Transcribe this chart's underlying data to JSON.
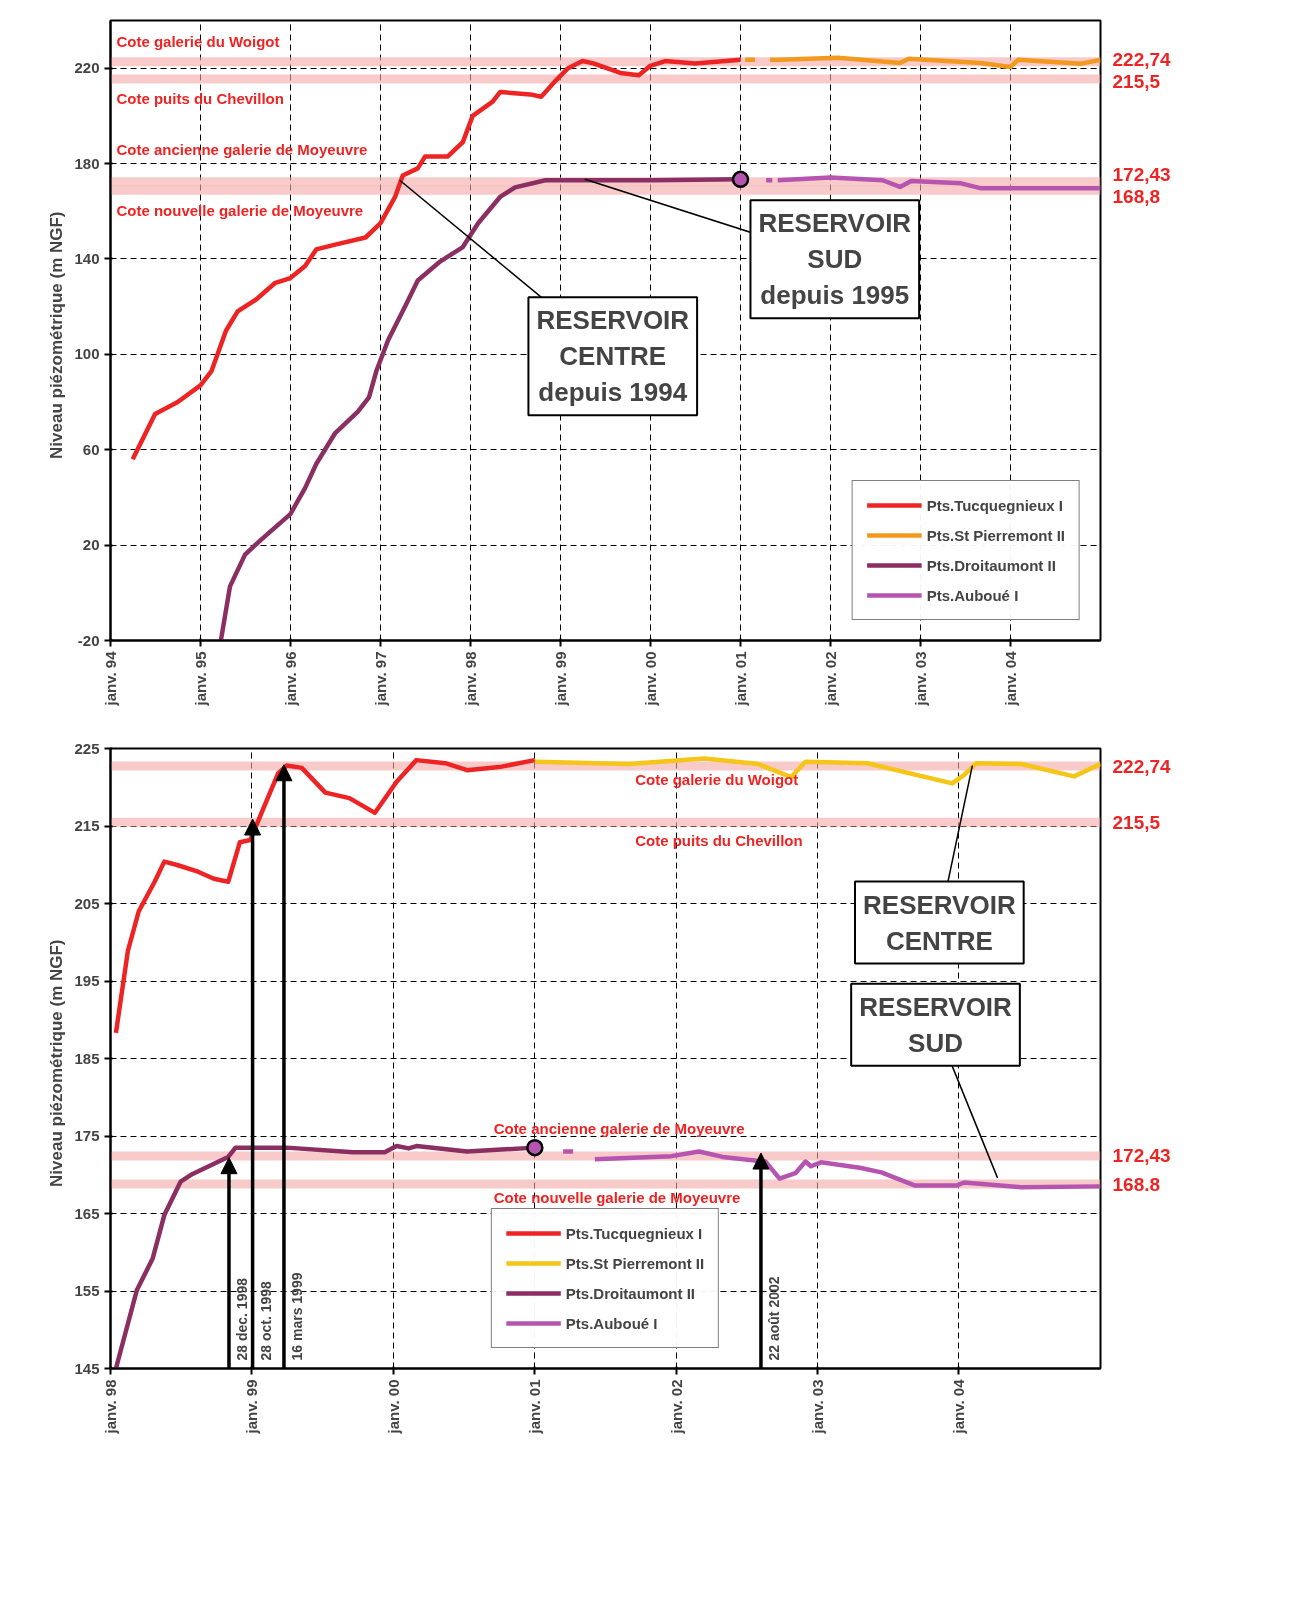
{
  "chart_data": [
    {
      "type": "line",
      "ylabel": "Niveau piézométrique   (m NGF)",
      "xlim": [
        "1994-01-01",
        "2005-01-01"
      ],
      "xticks": [
        {
          "value": "1994-01-01",
          "label": "janv. 94"
        },
        {
          "value": "1995-01-01",
          "label": "janv. 95"
        },
        {
          "value": "1996-01-01",
          "label": "janv. 96"
        },
        {
          "value": "1997-01-01",
          "label": "janv. 97"
        },
        {
          "value": "1998-01-01",
          "label": "janv. 98"
        },
        {
          "value": "1999-01-01",
          "label": "janv. 99"
        },
        {
          "value": "2000-01-01",
          "label": "janv. 00"
        },
        {
          "value": "2001-01-01",
          "label": "janv. 01"
        },
        {
          "value": "2002-01-01",
          "label": "janv. 02"
        },
        {
          "value": "2003-01-01",
          "label": "janv. 03"
        },
        {
          "value": "2004-01-01",
          "label": "janv. 04"
        }
      ],
      "ylim": [
        -20,
        240
      ],
      "yticks": [
        -20,
        20,
        60,
        100,
        140,
        180,
        220
      ],
      "grid": true,
      "legend": "bottom right",
      "series": [
        {
          "name": "Pts.Tucquegnieux I",
          "color": "#ee2424",
          "x": [
            "1994-04-01",
            "1994-07-01",
            "1994-10-01",
            "1995-01-01",
            "1995-02-15",
            "1995-04-15",
            "1995-06-01",
            "1995-08-15",
            "1995-11-01",
            "1996-01-01",
            "1996-03-01",
            "1996-04-15",
            "1996-07-01",
            "1996-11-01",
            "1997-01-01",
            "1997-03-01",
            "1997-04-01",
            "1997-06-01",
            "1997-07-01",
            "1997-10-01",
            "1997-12-01",
            "1998-01-10",
            "1998-04-01",
            "1998-05-01",
            "1998-09-01",
            "1998-10-15",
            "1998-12-15",
            "1999-02-01",
            "1999-04-01",
            "1999-05-15",
            "1999-09-01",
            "1999-11-15",
            "2000-01-01",
            "2000-03-01",
            "2000-07-01",
            "2001-01-01"
          ],
          "values": [
            56,
            75,
            80,
            87,
            93,
            110,
            118,
            123,
            130,
            132,
            137,
            144,
            146,
            149,
            155,
            166,
            175,
            178,
            183,
            183,
            189,
            200,
            206,
            210,
            209,
            208,
            215,
            220,
            223,
            222,
            218,
            217,
            221,
            223,
            222,
            223.5
          ]
        },
        {
          "name": "Pts.St Pierremont II",
          "color": "#f39a1e",
          "x": [
            "2001-01-20",
            "2001-03-01",
            "2001-03-20",
            "2001-05-01",
            "2001-06-10",
            "2002-02-01",
            "2002-10-10",
            "2002-11-15",
            "2003-09-01",
            "2004-01-01",
            "2004-02-01",
            "2004-10-15",
            "2005-01-01"
          ],
          "values": [
            223.5,
            223.5,
            null,
            223.5,
            223.5,
            224.4,
            222.2,
            224,
            222.2,
            220.5,
            223.5,
            221.9,
            223.5
          ]
        },
        {
          "name": "Pts.Droitaumont II",
          "color": "#8b2e62",
          "x": [
            "1995-03-25",
            "1995-05-01",
            "1995-07-01",
            "1995-09-01",
            "1996-01-01",
            "1996-03-01",
            "1996-04-15",
            "1996-07-01",
            "1996-10-01",
            "1996-11-15",
            "1996-12-15",
            "1997-02-01",
            "1997-04-15",
            "1997-06-01",
            "1997-09-01",
            "1997-12-01",
            "1998-02-01",
            "1998-05-01",
            "1998-07-01",
            "1998-11-01",
            "2000-01-01",
            "2001-01-01"
          ],
          "values": [
            -20,
            2.7,
            16,
            22,
            33,
            44,
            54,
            67,
            76,
            82,
            93,
            106,
            121,
            131,
            139,
            145,
            155,
            166,
            170,
            173,
            173,
            173.4
          ]
        },
        {
          "name": "Pts.Auboué I",
          "color": "#b655b0",
          "x": [
            "2001-04-15",
            "2001-05-10",
            "2001-05-20",
            "2001-06-01",
            "2002-01-01",
            "2002-08-01",
            "2002-10-10",
            "2002-11-25",
            "2003-06-15",
            "2003-09-01",
            "2004-02-01",
            "2005-01-01"
          ],
          "values": [
            173,
            173,
            null,
            173,
            174.2,
            173,
            170.2,
            172.7,
            171.7,
            169.7,
            169.7,
            169.7
          ]
        },
        {
          "type": "scatter",
          "marker": "circle",
          "color": "#b655b0",
          "x": [
            "2001-01-01"
          ],
          "values": [
            173.4
          ]
        }
      ],
      "ref_lines": [
        {
          "axis": "y",
          "value": 222.74,
          "label": "222,74",
          "color": "#f4a6a6"
        },
        {
          "axis": "y",
          "value": 215.5,
          "label": "215,5",
          "color": "#f4a6a6"
        },
        {
          "axis": "y",
          "value": 172.43,
          "label": "172,43",
          "color": "#f4a6a6"
        },
        {
          "axis": "y",
          "value": 168.8,
          "label": "168,8",
          "color": "#f4a6a6"
        }
      ],
      "annotations": [
        "Cote galerie du Woigot",
        "Cote puits du Chevillon",
        "Cote ancienne galerie de Moyeuvre",
        "Cote nouvelle galerie de Moyeuvre",
        {
          "text": "RESERVOIR\nCENTRE\ndepuis 1994",
          "x": "1997-03-20",
          "y": 173
        },
        {
          "text": "RESERVOIR\nSUD\ndepuis 1995",
          "x": "1999-04-10",
          "y": 173.4
        }
      ]
    },
    {
      "type": "line",
      "ylabel": "Niveau piézométrique   (m NGF)",
      "xlim": [
        "1998-01-01",
        "2005-01-01"
      ],
      "xticks": [
        {
          "value": "1998-01-01",
          "label": "janv. 98"
        },
        {
          "value": "1999-01-01",
          "label": "janv. 99"
        },
        {
          "value": "2000-01-01",
          "label": "janv. 00"
        },
        {
          "value": "2001-01-01",
          "label": "janv. 01"
        },
        {
          "value": "2002-01-01",
          "label": "janv. 02"
        },
        {
          "value": "2003-01-01",
          "label": "janv. 03"
        },
        {
          "value": "2004-01-01",
          "label": "janv. 04"
        }
      ],
      "ylim": [
        145,
        225
      ],
      "yticks": [
        145,
        155,
        165,
        175,
        185,
        195,
        205,
        215,
        225
      ],
      "grid": true,
      "legend": "bottom",
      "series": [
        {
          "name": "Pts.Tucquegnieux I",
          "color": "#ee2424",
          "x": [
            "1998-01-15",
            "1998-02-15",
            "1998-03-15",
            "1998-04-25",
            "1998-05-20",
            "1998-06-20",
            "1998-08-15",
            "1998-09-25",
            "1998-11-01",
            "1998-12-01",
            "1998-12-28",
            "1999-02-01",
            "1999-03-10",
            "1999-04-01",
            "1999-05-10",
            "1999-07-10",
            "1999-09-10",
            "1999-11-15",
            "2000-01-10",
            "2000-03-01",
            "2000-05-15",
            "2000-07-10",
            "2000-10-01",
            "2001-01-01"
          ],
          "values": [
            188.3,
            198.9,
            204,
            207.8,
            210.4,
            210,
            209.1,
            208.2,
            207.8,
            212.9,
            213.2,
            217.4,
            221.8,
            222.8,
            222.5,
            219.3,
            218.6,
            216.7,
            220.7,
            223.5,
            223.1,
            222.2,
            222.6,
            223.5
          ]
        },
        {
          "name": "Pts.St Pierremont II",
          "color": "#f5c518",
          "x": [
            "2001-01-01",
            "2001-09-01",
            "2002-03-15",
            "2002-08-01",
            "2002-10-25",
            "2002-12-01",
            "2003-05-10",
            "2003-12-15",
            "2004-01-15",
            "2004-02-15",
            "2004-06-10",
            "2004-10-25",
            "2005-01-01"
          ],
          "values": [
            223.3,
            223.0,
            223.7,
            223.0,
            221.3,
            223.3,
            223.1,
            220.5,
            221.6,
            223.1,
            223.0,
            221.4,
            223.0
          ]
        },
        {
          "name": "Pts.Droitaumont II",
          "color": "#8b2e62",
          "x": [
            "1998-01-15",
            "1998-03-10",
            "1998-04-20",
            "1998-05-20",
            "1998-07-01",
            "1998-08-01",
            "1998-11-01",
            "1998-11-20",
            "1999-04-01",
            "1999-09-20",
            "1999-12-10",
            "2000-01-10",
            "2000-02-10",
            "2000-03-01",
            "2000-07-10",
            "2001-01-01"
          ],
          "values": [
            145,
            155.1,
            159.2,
            164.8,
            169.1,
            170.1,
            172.3,
            173.5,
            173.5,
            172.9,
            172.9,
            173.7,
            173.4,
            173.7,
            173.0,
            173.5
          ]
        },
        {
          "name": "Pts.Auboué I",
          "color": "#b655b0",
          "x": [
            "2001-03-15",
            "2001-04-10",
            "2001-05-01",
            "2001-06-05",
            "2001-12-20",
            "2002-03-01",
            "2002-05-01",
            "2002-08-20",
            "2002-09-25",
            "2002-11-05",
            "2002-12-01",
            "2002-12-15",
            "2003-01-10",
            "2003-04-20",
            "2003-06-15",
            "2003-09-10",
            "2003-12-25",
            "2004-01-15",
            "2004-06-10",
            "2005-01-01"
          ],
          "values": [
            173,
            173,
            null,
            172.0,
            172.4,
            173.0,
            172.3,
            171.7,
            169.5,
            170.2,
            171.7,
            171.1,
            171.6,
            170.9,
            170.3,
            168.6,
            168.6,
            169.0,
            168.4,
            168.5
          ]
        },
        {
          "type": "scatter",
          "marker": "circle",
          "color": "#b655b0",
          "x": [
            "2001-01-01"
          ],
          "values": [
            173.5
          ]
        }
      ],
      "ref_lines": [
        {
          "axis": "y",
          "value": 222.74,
          "label": "222,74",
          "color": "#f4a6a6"
        },
        {
          "axis": "y",
          "value": 215.5,
          "label": "215,5",
          "color": "#f4a6a6"
        },
        {
          "axis": "y",
          "value": 172.43,
          "label": "172,43",
          "color": "#f4a6a6"
        },
        {
          "axis": "y",
          "value": 168.8,
          "label": "168.8",
          "color": "#f4a6a6"
        }
      ],
      "annotations": [
        "Cote galerie du Woigot",
        "Cote puits du Chevillon",
        "Cote ancienne galerie de Moyeuvre",
        "Cote nouvelle galerie de Moyeuvre",
        {
          "text": "28 dec. 1998",
          "x": "1998-11-03",
          "y": 172.2
        },
        {
          "text": "28 oct. 1998",
          "x": "1999-01-03",
          "y": 215.9
        },
        {
          "text": "16 mars 1999",
          "x": "1999-03-25",
          "y": 222.9
        },
        {
          "text": "22 août 2002",
          "x": "2002-08-08",
          "y": 172.8
        },
        {
          "text": "RESERVOIR\nCENTRE",
          "x": "2004-02-05",
          "y": 222.8
        },
        {
          "text": "RESERVOIR\nSUD",
          "x": "2004-04-10",
          "y": 169.6
        }
      ]
    }
  ]
}
